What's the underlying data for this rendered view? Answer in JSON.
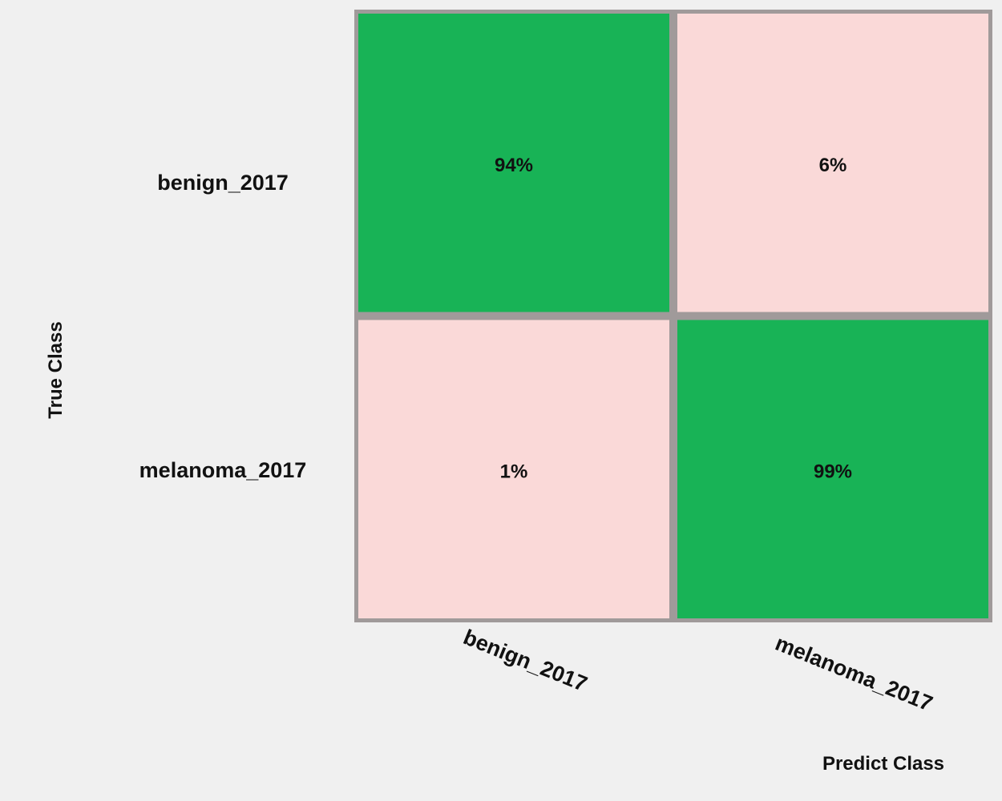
{
  "chart_data": {
    "type": "heatmap",
    "title": "",
    "xlabel": "Predict Class",
    "ylabel": "True Class",
    "x_categories": [
      "benign_2017",
      "melanoma_2017"
    ],
    "y_categories": [
      "benign_2017",
      "melanoma_2017"
    ],
    "values": [
      [
        94,
        6
      ],
      [
        1,
        99
      ]
    ],
    "cell_labels": [
      [
        "94%",
        "6%"
      ],
      [
        "1%",
        "99%"
      ]
    ],
    "unit": "%",
    "colors": {
      "diagonal": "#18b356",
      "off_diagonal": "#fad9d8",
      "border": "#a09a9a",
      "background": "#f0f0f0"
    }
  }
}
